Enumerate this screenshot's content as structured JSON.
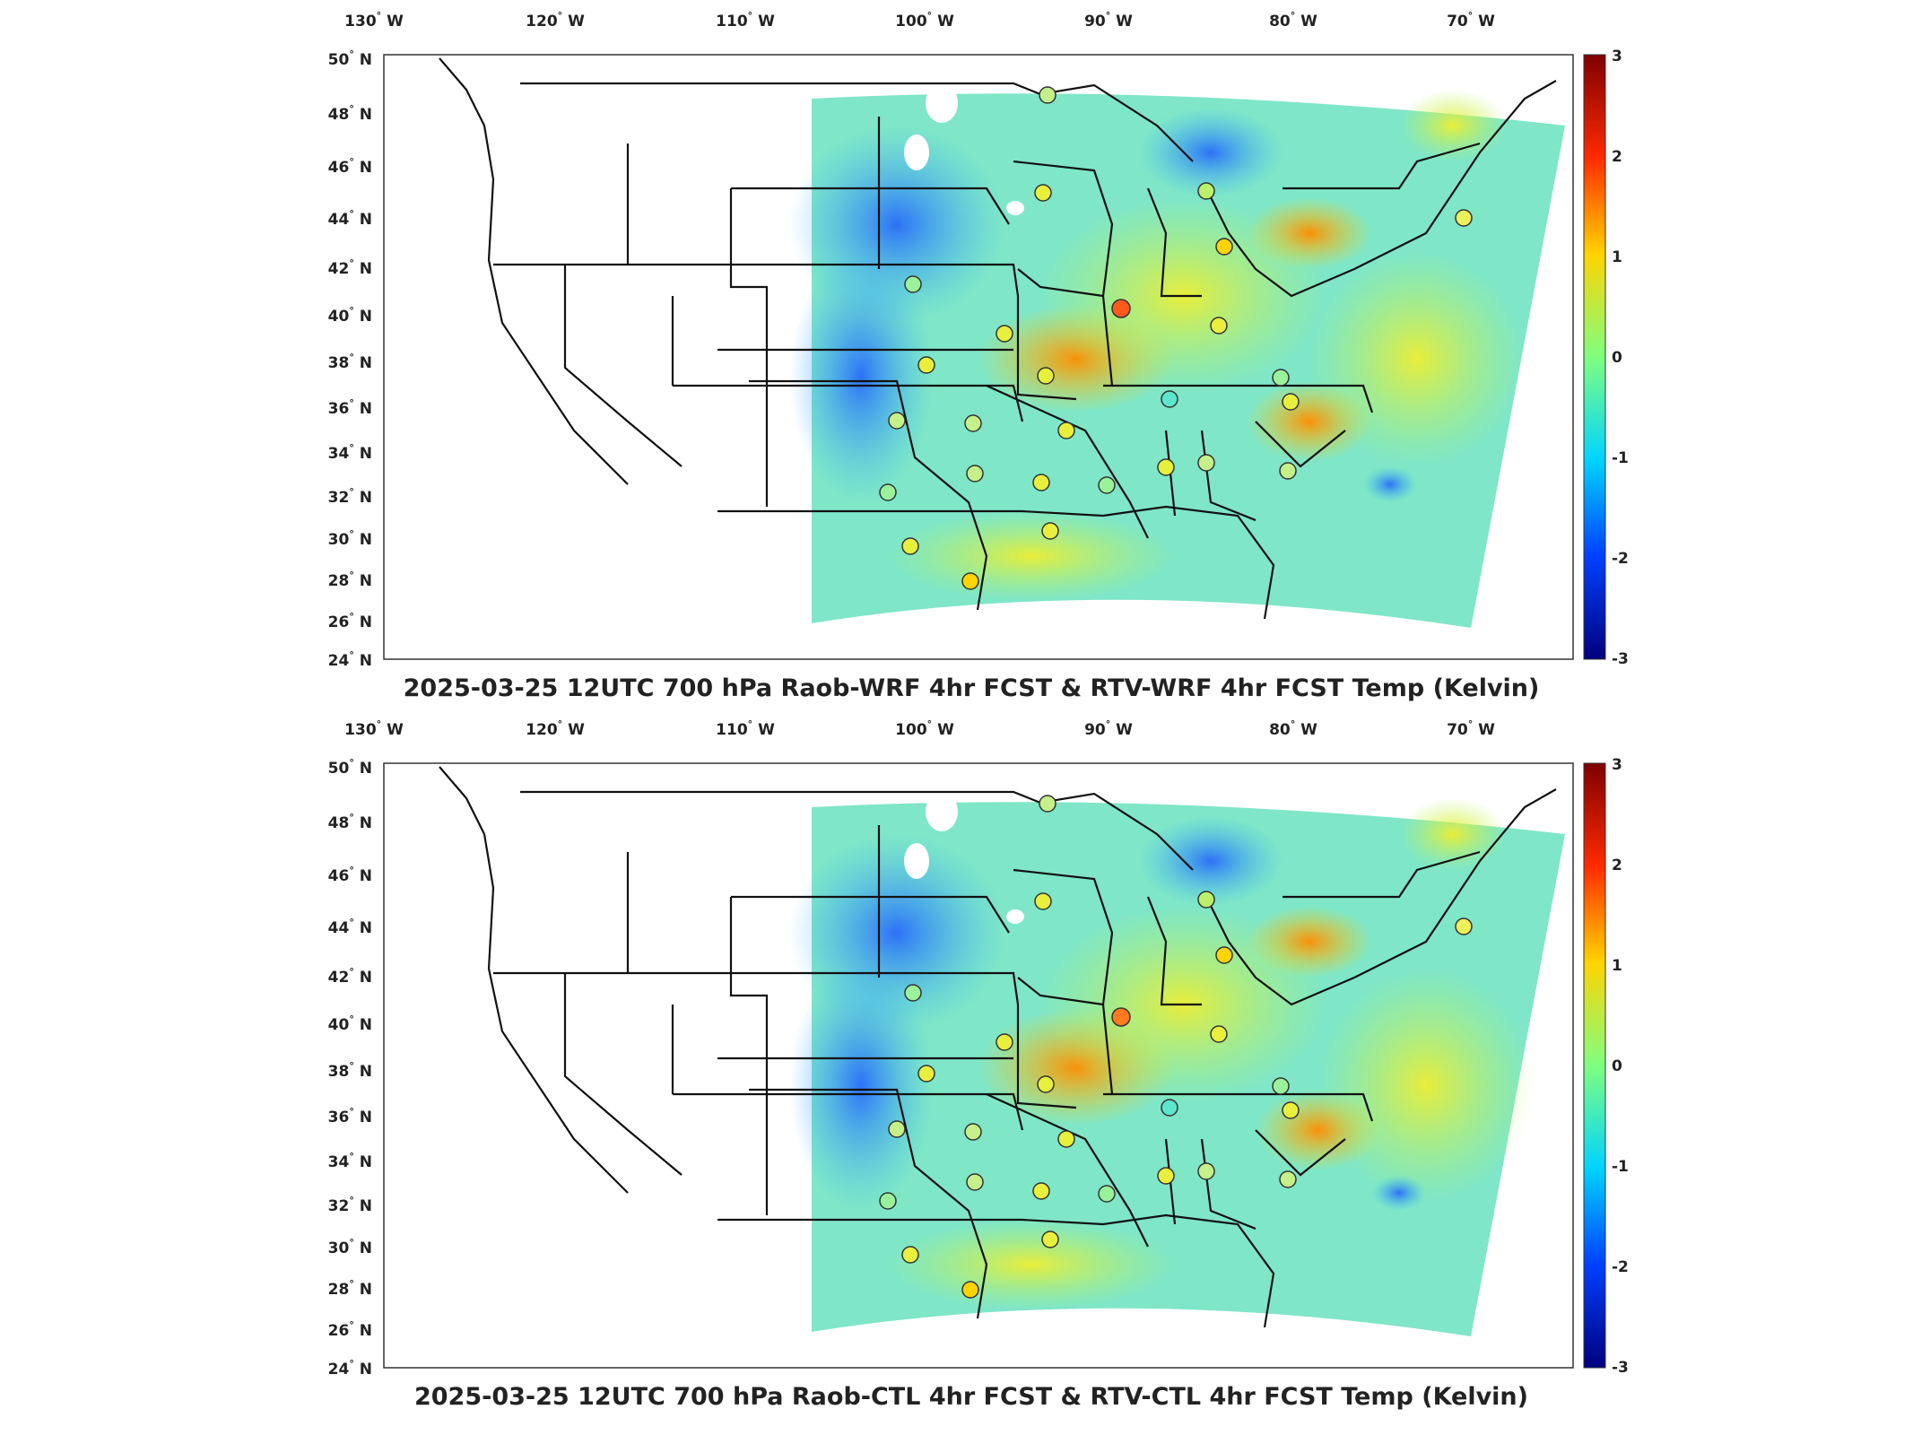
{
  "colorbar": {
    "ticks": [
      "3",
      "2",
      "1",
      "0",
      "-1",
      "-2",
      "-3"
    ],
    "colors": [
      "#7f0000",
      "#ff2a00",
      "#ffd400",
      "#7fff7f",
      "#00d4ff",
      "#0040ff",
      "#00007f"
    ]
  },
  "lon_labels": [
    {
      "deg": "130",
      "dir": "W"
    },
    {
      "deg": "120",
      "dir": "W"
    },
    {
      "deg": "110",
      "dir": "W"
    },
    {
      "deg": "100",
      "dir": "W"
    },
    {
      "deg": "90",
      "dir": "W"
    },
    {
      "deg": "80",
      "dir": "W"
    },
    {
      "deg": "70",
      "dir": "W"
    }
  ],
  "lat_labels": [
    {
      "deg": "50",
      "dir": "N"
    },
    {
      "deg": "48",
      "dir": "N"
    },
    {
      "deg": "46",
      "dir": "N"
    },
    {
      "deg": "44",
      "dir": "N"
    },
    {
      "deg": "42",
      "dir": "N"
    },
    {
      "deg": "40",
      "dir": "N"
    },
    {
      "deg": "38",
      "dir": "N"
    },
    {
      "deg": "36",
      "dir": "N"
    },
    {
      "deg": "34",
      "dir": "N"
    },
    {
      "deg": "32",
      "dir": "N"
    },
    {
      "deg": "30",
      "dir": "N"
    },
    {
      "deg": "28",
      "dir": "N"
    },
    {
      "deg": "26",
      "dir": "N"
    },
    {
      "deg": "24",
      "dir": "N"
    }
  ],
  "panels": [
    {
      "title": "2025-03-25 12UTC 700 hPa Raob-WRF 4hr FCST & RTV-WRF 4hr FCST Temp (Kelvin)"
    },
    {
      "title": "2025-03-25 12UTC 700 hPa Raob-CTL 4hr FCST & RTV-CTL 4hr FCST Temp (Kelvin)"
    }
  ]
}
